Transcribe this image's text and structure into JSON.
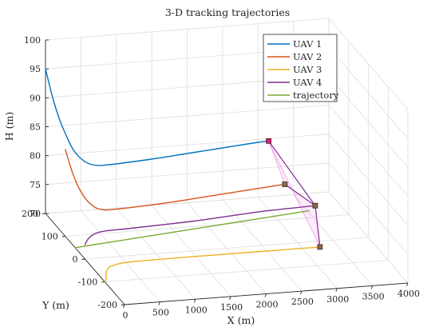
{
  "chart_data": {
    "type": "line",
    "projection": "3d",
    "title": "3-D tracking trajectories",
    "xlabel": "X (m)",
    "ylabel": "Y (m)",
    "zlabel": "H (m)",
    "xlim": [
      0,
      4000
    ],
    "ylim": [
      -200,
      200
    ],
    "zlim": [
      70,
      100
    ],
    "xticks": [
      "0",
      "500",
      "1000",
      "1500",
      "2000",
      "2500",
      "3000",
      "3500",
      "4000"
    ],
    "yticks": [
      "-200",
      "-100",
      "0",
      "100",
      "200"
    ],
    "zticks": [
      "70",
      "75",
      "80",
      "85",
      "90",
      "95",
      "100"
    ],
    "grid": true,
    "legend_position": "top-right",
    "series": [
      {
        "name": "UAV 1",
        "color": "#0072BD",
        "points": [
          [
            0,
            200,
            95
          ],
          [
            100,
            200,
            90
          ],
          [
            200,
            200,
            86
          ],
          [
            300,
            200,
            83
          ],
          [
            400,
            200,
            80.5
          ],
          [
            550,
            200,
            78.5
          ],
          [
            700,
            200,
            77.7
          ],
          [
            900,
            200,
            77.6
          ],
          [
            1500,
            200,
            78
          ],
          [
            2000,
            200,
            78.5
          ],
          [
            2500,
            200,
            79
          ],
          [
            3000,
            200,
            79.5
          ],
          [
            3150,
            200,
            79.6
          ]
        ]
      },
      {
        "name": "UAV 2",
        "color": "#D95319",
        "points": [
          [
            0,
            100,
            85
          ],
          [
            100,
            100,
            81
          ],
          [
            200,
            100,
            78
          ],
          [
            300,
            100,
            76
          ],
          [
            400,
            100,
            74.8
          ],
          [
            500,
            100,
            74.2
          ],
          [
            700,
            100,
            74
          ],
          [
            1500,
            100,
            74.5
          ],
          [
            2000,
            100,
            75
          ],
          [
            2500,
            100,
            75.5
          ],
          [
            3000,
            100,
            76
          ],
          [
            3100,
            100,
            76.1
          ]
        ]
      },
      {
        "name": "UAV 3",
        "color": "#EDB120",
        "points": [
          [
            0,
            -100,
            70
          ],
          [
            50,
            -90,
            70
          ],
          [
            100,
            -70,
            70
          ],
          [
            200,
            -45,
            70
          ],
          [
            300,
            -35,
            70
          ],
          [
            450,
            -28,
            70
          ],
          [
            700,
            -25,
            70
          ],
          [
            1500,
            -24,
            70
          ],
          [
            2000,
            -24,
            70
          ],
          [
            2500,
            -24,
            70
          ],
          [
            3000,
            -24,
            70
          ],
          [
            3250,
            -24,
            70
          ]
        ]
      },
      {
        "name": "UAV 4",
        "color": "#7E2F8E",
        "points": [
          [
            0,
            0,
            72.5
          ],
          [
            50,
            0,
            73.5
          ],
          [
            150,
            0,
            74.3
          ],
          [
            300,
            0,
            74.6
          ],
          [
            600,
            0,
            74.7
          ],
          [
            1500,
            0,
            75.1
          ],
          [
            2000,
            0,
            75.5
          ],
          [
            2500,
            0,
            75.9
          ],
          [
            3000,
            0,
            76.1
          ],
          [
            3250,
            0,
            76.2
          ]
        ]
      },
      {
        "name": "trajectory",
        "color": "#77AC30",
        "points": [
          [
            0,
            50,
            70
          ],
          [
            500,
            50,
            70.5
          ],
          [
            1000,
            50,
            71
          ],
          [
            1500,
            50,
            71.5
          ],
          [
            2000,
            50,
            72
          ],
          [
            2500,
            50,
            72.5
          ],
          [
            3000,
            50,
            73
          ],
          [
            3300,
            50,
            73.3
          ]
        ]
      }
    ],
    "markers": {
      "color": "#8B6A50",
      "highlight_color": "#E8127A",
      "formation_color": "#E85AE0",
      "points": [
        [
          3150,
          200,
          79.6
        ],
        [
          3100,
          100,
          76.1
        ],
        [
          3250,
          0,
          76.2
        ],
        [
          3250,
          -24,
          70
        ]
      ]
    }
  }
}
